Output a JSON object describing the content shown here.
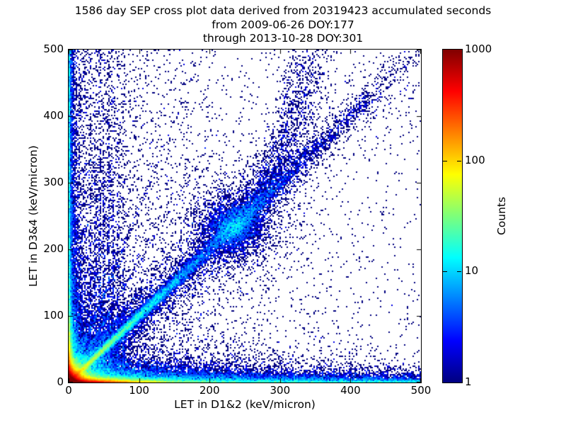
{
  "figure": {
    "background": "#ffffff",
    "text_color": "#000000",
    "point_color_min": "#000080"
  },
  "chart_data": {
    "type": "heatmap",
    "title": "1586 day SEP cross plot data derived from 20319423 accumulated seconds",
    "title_lines": [
      "1586 day SEP cross plot data derived from 20319423 accumulated seconds",
      "from 2009-06-26 DOY:177",
      "through 2013-10-28 DOY:301"
    ],
    "xlabel": "LET in D1&2 (keV/micron)",
    "ylabel": "LET in D3&4 (keV/micron)",
    "xlim": [
      0,
      500
    ],
    "ylim": [
      0,
      500
    ],
    "xticks": [
      0,
      100,
      200,
      300,
      400,
      500
    ],
    "yticks": [
      0,
      100,
      200,
      300,
      400,
      500
    ],
    "grid": false,
    "legend": "none",
    "colorbar": {
      "label": "Counts",
      "scale": "log",
      "range": [
        1,
        1000
      ],
      "ticks": [
        1,
        10,
        100,
        1000
      ],
      "tick_labels": [
        "1",
        "10",
        "100",
        "1000"
      ],
      "colormap": "jet",
      "gradient_stops": [
        {
          "pos": 0.0,
          "color": "#000080"
        },
        {
          "pos": 0.125,
          "color": "#0000ff"
        },
        {
          "pos": 0.25,
          "color": "#0080ff"
        },
        {
          "pos": 0.375,
          "color": "#00ffff"
        },
        {
          "pos": 0.5,
          "color": "#7dff7a"
        },
        {
          "pos": 0.625,
          "color": "#ffff00"
        },
        {
          "pos": 0.75,
          "color": "#ff8000"
        },
        {
          "pos": 0.875,
          "color": "#ff0000"
        },
        {
          "pos": 1.0,
          "color": "#800000"
        }
      ]
    },
    "density_model": {
      "seed": 42,
      "bin_size_px": 2,
      "components": [
        {
          "kind": "uniform",
          "n": 900
        },
        {
          "kind": "exp2d",
          "sx": 170,
          "sy": 170,
          "n": 2600
        },
        {
          "kind": "expx_uni",
          "sx": 70,
          "n": 2500
        },
        {
          "kind": "expx_uni",
          "sx": 2,
          "n": 3500
        },
        {
          "kind": "exp2d",
          "sx": 8,
          "sy": 250,
          "n": 3000
        },
        {
          "kind": "uni_expy",
          "sy": 3.5,
          "n": 6500
        },
        {
          "kind": "exp2d",
          "sx": 200,
          "sy": 8,
          "n": 5000
        },
        {
          "kind": "exp2d",
          "sx": 180,
          "sy": 12,
          "n": 7000
        },
        {
          "kind": "exp2d",
          "sx": 30,
          "sy": 18,
          "n": 6000
        },
        {
          "kind": "exp2d",
          "sx": 12,
          "sy": 60,
          "n": 4000
        },
        {
          "kind": "exp2d",
          "sx": 7,
          "sy": 7,
          "n": 45000
        },
        {
          "kind": "exp2d",
          "sx": 3,
          "sy": 3,
          "n": 15000
        },
        {
          "kind": "exp2d",
          "sx": 35,
          "sy": 2.2,
          "n": 30000
        },
        {
          "kind": "exp2d",
          "sx": 2,
          "sy": 25,
          "n": 8000
        },
        {
          "kind": "diag",
          "tscale": 110,
          "tmax": 500,
          "s0": 1.5,
          "sg": 0.02,
          "n": 12000
        },
        {
          "kind": "diag",
          "tscale": 160,
          "tmax": 480,
          "s0": 8,
          "sg": 0.06,
          "n": 5000
        },
        {
          "kind": "gauss",
          "cx": 232,
          "cy": 232,
          "s": 20,
          "n": 2200
        },
        {
          "kind": "gauss",
          "cx": 232,
          "cy": 232,
          "s": 38,
          "n": 1300
        },
        {
          "kind": "branch",
          "x0": 230,
          "y0": 230,
          "ax": 118,
          "ay1": 66,
          "ay2": 206,
          "p": 1.35,
          "s0": 9,
          "sg": 9,
          "n": 2600
        },
        {
          "kind": "diagseg",
          "t0": 250,
          "t1": 430,
          "s": 6,
          "n": 500
        },
        {
          "kind": "ray",
          "slope": 1.35,
          "tscale": 45,
          "s": 1.2,
          "n": 500
        },
        {
          "kind": "ray",
          "slope": 1.8,
          "tscale": 45,
          "s": 1.2,
          "n": 500
        },
        {
          "kind": "ray",
          "slope": 2.6,
          "tscale": 45,
          "s": 1.2,
          "n": 500
        },
        {
          "kind": "vline",
          "x": 31,
          "yscale": 120,
          "sx": 1.2,
          "n": 220
        },
        {
          "kind": "vline",
          "x": 38,
          "yscale": 160,
          "sx": 1.2,
          "n": 300
        },
        {
          "kind": "vline",
          "x": 44,
          "yscale": 200,
          "sx": 1.2,
          "n": 380
        },
        {
          "kind": "vline",
          "x": 50,
          "yscale": 170,
          "sx": 1.2,
          "n": 340
        },
        {
          "kind": "vline",
          "x": 57,
          "yscale": 230,
          "sx": 1.2,
          "n": 420
        },
        {
          "kind": "vline",
          "x": 63,
          "yscale": 180,
          "sx": 1.2,
          "n": 320
        },
        {
          "kind": "vline",
          "x": 70,
          "yscale": 140,
          "sx": 1.2,
          "n": 260
        },
        {
          "kind": "vline",
          "x": 78,
          "yscale": 110,
          "sx": 1.2,
          "n": 200
        }
      ]
    }
  }
}
